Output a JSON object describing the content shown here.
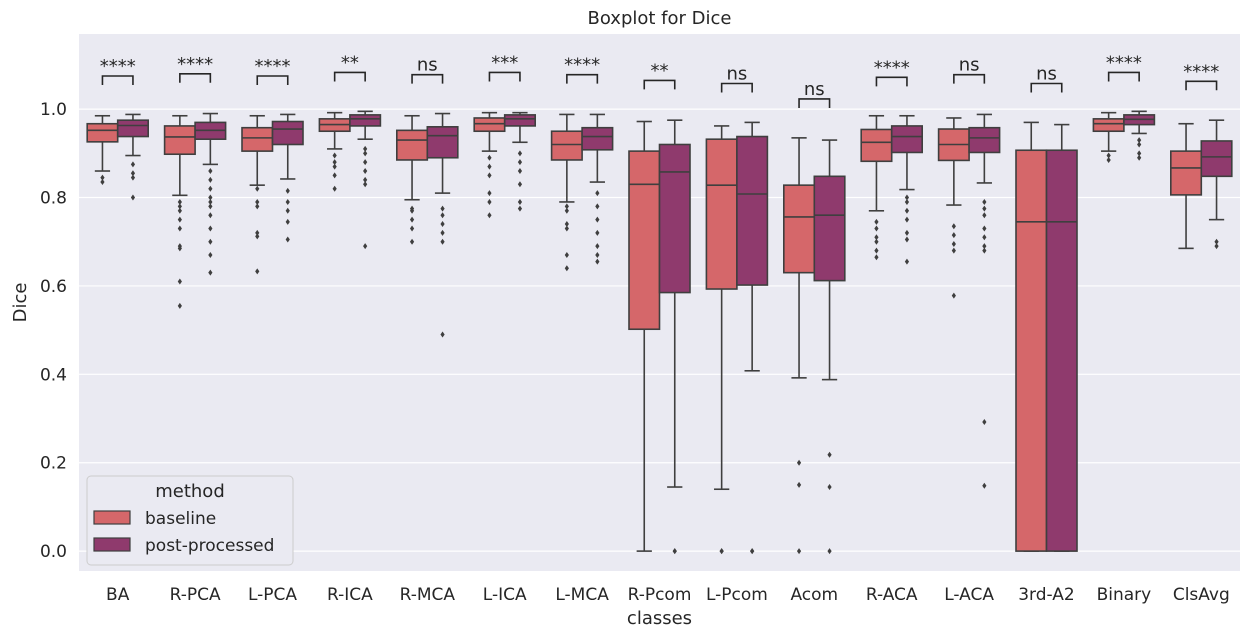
{
  "chart_data": {
    "type": "boxplot",
    "title": "Boxplot for Dice",
    "xlabel": "classes",
    "ylabel": "Dice",
    "ylim": [
      -0.045,
      1.17
    ],
    "yticks": [
      0.0,
      0.2,
      0.4,
      0.6,
      0.8,
      1.0
    ],
    "ytick_labels": [
      "0.0",
      "0.2",
      "0.4",
      "0.6",
      "0.8",
      "1.0"
    ],
    "grid": true,
    "legend": {
      "title": "method",
      "placement": "lower-left"
    },
    "categories": [
      "BA",
      "R-PCA",
      "L-PCA",
      "R-ICA",
      "R-MCA",
      "L-ICA",
      "L-MCA",
      "R-Pcom",
      "L-Pcom",
      "Acom",
      "R-ACA",
      "L-ACA",
      "3rd-A2",
      "Binary",
      "ClsAvg"
    ],
    "series": [
      {
        "name": "baseline",
        "color": "#d5676a",
        "boxes": [
          {
            "q1": 0.926,
            "median": 0.952,
            "q3": 0.967,
            "wlow": 0.86,
            "whigh": 0.985,
            "outliers": [
              0.845,
              0.835
            ]
          },
          {
            "q1": 0.898,
            "median": 0.937,
            "q3": 0.962,
            "wlow": 0.805,
            "whigh": 0.985,
            "outliers": [
              0.79,
              0.78,
              0.77,
              0.75,
              0.73,
              0.69,
              0.685,
              0.61,
              0.555
            ]
          },
          {
            "q1": 0.905,
            "median": 0.935,
            "q3": 0.958,
            "wlow": 0.828,
            "whigh": 0.985,
            "outliers": [
              0.82,
              0.79,
              0.78,
              0.72,
              0.712,
              0.633
            ]
          },
          {
            "q1": 0.95,
            "median": 0.965,
            "q3": 0.978,
            "wlow": 0.91,
            "whigh": 0.992,
            "outliers": [
              0.895,
              0.88,
              0.87,
              0.85,
              0.82
            ]
          },
          {
            "q1": 0.885,
            "median": 0.93,
            "q3": 0.952,
            "wlow": 0.795,
            "whigh": 0.985,
            "outliers": [
              0.775,
              0.77,
              0.75,
              0.73,
              0.7
            ]
          },
          {
            "q1": 0.95,
            "median": 0.967,
            "q3": 0.98,
            "wlow": 0.905,
            "whigh": 0.992,
            "outliers": [
              0.89,
              0.87,
              0.85,
              0.81,
              0.79,
              0.76
            ]
          },
          {
            "q1": 0.885,
            "median": 0.92,
            "q3": 0.95,
            "wlow": 0.79,
            "whigh": 0.988,
            "outliers": [
              0.78,
              0.77,
              0.74,
              0.73,
              0.67,
              0.64
            ]
          },
          {
            "q1": 0.502,
            "median": 0.83,
            "q3": 0.905,
            "wlow": 0.0,
            "whigh": 0.972,
            "outliers": []
          },
          {
            "q1": 0.593,
            "median": 0.828,
            "q3": 0.932,
            "wlow": 0.14,
            "whigh": 0.962,
            "outliers": [
              0.0,
              0.0
            ]
          },
          {
            "q1": 0.63,
            "median": 0.756,
            "q3": 0.828,
            "wlow": 0.392,
            "whigh": 0.935,
            "outliers": [
              0.2,
              0.15,
              0.0
            ]
          },
          {
            "q1": 0.882,
            "median": 0.925,
            "q3": 0.954,
            "wlow": 0.77,
            "whigh": 0.985,
            "outliers": [
              0.745,
              0.73,
              0.71,
              0.7,
              0.68,
              0.665
            ]
          },
          {
            "q1": 0.884,
            "median": 0.92,
            "q3": 0.955,
            "wlow": 0.783,
            "whigh": 0.98,
            "outliers": [
              0.735,
              0.715,
              0.695,
              0.68,
              0.578
            ]
          },
          {
            "q1": 0.0,
            "median": 0.745,
            "q3": 0.907,
            "wlow": 0.0,
            "whigh": 0.97,
            "outliers": []
          },
          {
            "q1": 0.95,
            "median": 0.967,
            "q3": 0.978,
            "wlow": 0.905,
            "whigh": 0.992,
            "outliers": [
              0.895,
              0.885
            ]
          },
          {
            "q1": 0.806,
            "median": 0.867,
            "q3": 0.905,
            "wlow": 0.685,
            "whigh": 0.967,
            "outliers": []
          }
        ]
      },
      {
        "name": "post-processed",
        "color": "#8f3a6d",
        "boxes": [
          {
            "q1": 0.938,
            "median": 0.963,
            "q3": 0.975,
            "wlow": 0.895,
            "whigh": 0.988,
            "outliers": [
              0.875,
              0.855,
              0.845,
              0.8
            ]
          },
          {
            "q1": 0.932,
            "median": 0.952,
            "q3": 0.97,
            "wlow": 0.875,
            "whigh": 0.99,
            "outliers": [
              0.86,
              0.84,
              0.82,
              0.8,
              0.79,
              0.78,
              0.76,
              0.73,
              0.7,
              0.67,
              0.63
            ]
          },
          {
            "q1": 0.92,
            "median": 0.955,
            "q3": 0.972,
            "wlow": 0.842,
            "whigh": 0.988,
            "outliers": [
              0.815,
              0.79,
              0.77,
              0.745,
              0.705
            ]
          },
          {
            "q1": 0.962,
            "median": 0.978,
            "q3": 0.987,
            "wlow": 0.932,
            "whigh": 0.995,
            "outliers": [
              0.91,
              0.9,
              0.88,
              0.86,
              0.84,
              0.83,
              0.69
            ]
          },
          {
            "q1": 0.89,
            "median": 0.94,
            "q3": 0.96,
            "wlow": 0.81,
            "whigh": 0.99,
            "outliers": [
              0.775,
              0.76,
              0.74,
              0.72,
              0.7,
              0.49
            ]
          },
          {
            "q1": 0.962,
            "median": 0.978,
            "q3": 0.987,
            "wlow": 0.925,
            "whigh": 0.992,
            "outliers": [
              0.9,
              0.88,
              0.86,
              0.83,
              0.79,
              0.775
            ]
          },
          {
            "q1": 0.908,
            "median": 0.938,
            "q3": 0.958,
            "wlow": 0.835,
            "whigh": 0.988,
            "outliers": [
              0.81,
              0.78,
              0.75,
              0.72,
              0.69,
              0.67,
              0.655
            ]
          },
          {
            "q1": 0.585,
            "median": 0.858,
            "q3": 0.92,
            "wlow": 0.145,
            "whigh": 0.975,
            "outliers": [
              0.0,
              0.0
            ]
          },
          {
            "q1": 0.602,
            "median": 0.808,
            "q3": 0.938,
            "wlow": 0.408,
            "whigh": 0.97,
            "outliers": [
              0.0,
              0.0
            ]
          },
          {
            "q1": 0.612,
            "median": 0.76,
            "q3": 0.848,
            "wlow": 0.388,
            "whigh": 0.93,
            "outliers": [
              0.218,
              0.145,
              0.0
            ]
          },
          {
            "q1": 0.902,
            "median": 0.938,
            "q3": 0.962,
            "wlow": 0.818,
            "whigh": 0.985,
            "outliers": [
              0.8,
              0.79,
              0.77,
              0.75,
              0.72,
              0.705,
              0.655
            ]
          },
          {
            "q1": 0.902,
            "median": 0.935,
            "q3": 0.958,
            "wlow": 0.833,
            "whigh": 0.988,
            "outliers": [
              0.79,
              0.775,
              0.76,
              0.73,
              0.71,
              0.69,
              0.68,
              0.292,
              0.148
            ]
          },
          {
            "q1": 0.0,
            "median": 0.745,
            "q3": 0.907,
            "wlow": 0.0,
            "whigh": 0.965,
            "outliers": []
          },
          {
            "q1": 0.965,
            "median": 0.977,
            "q3": 0.987,
            "wlow": 0.945,
            "whigh": 0.995,
            "outliers": [
              0.93,
              0.92,
              0.9,
              0.89
            ]
          },
          {
            "q1": 0.848,
            "median": 0.892,
            "q3": 0.928,
            "wlow": 0.75,
            "whigh": 0.975,
            "outliers": [
              0.7,
              0.69
            ]
          }
        ]
      }
    ],
    "annotations": [
      {
        "category": "BA",
        "text": "****",
        "y": 1.075
      },
      {
        "category": "R-PCA",
        "text": "****",
        "y": 1.08
      },
      {
        "category": "L-PCA",
        "text": "****",
        "y": 1.075
      },
      {
        "category": "R-ICA",
        "text": "**",
        "y": 1.083
      },
      {
        "category": "R-MCA",
        "text": "ns",
        "y": 1.078
      },
      {
        "category": "L-ICA",
        "text": "***",
        "y": 1.083
      },
      {
        "category": "L-MCA",
        "text": "****",
        "y": 1.078
      },
      {
        "category": "R-Pcom",
        "text": "**",
        "y": 1.065
      },
      {
        "category": "L-Pcom",
        "text": "ns",
        "y": 1.058
      },
      {
        "category": "Acom",
        "text": "ns",
        "y": 1.023
      },
      {
        "category": "R-ACA",
        "text": "****",
        "y": 1.072
      },
      {
        "category": "L-ACA",
        "text": "ns",
        "y": 1.078
      },
      {
        "category": "3rd-A2",
        "text": "ns",
        "y": 1.058
      },
      {
        "category": "Binary",
        "text": "****",
        "y": 1.083
      },
      {
        "category": "ClsAvg",
        "text": "****",
        "y": 1.063
      }
    ]
  }
}
